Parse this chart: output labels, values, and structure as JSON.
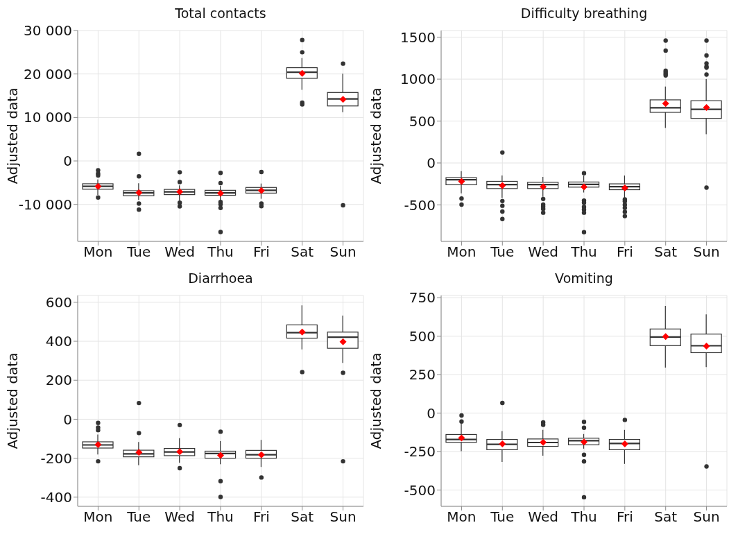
{
  "chart_data": [
    {
      "type": "box",
      "title": "Total contacts",
      "ylabel": "Adjusted data",
      "categories": [
        "Mon",
        "Tue",
        "Wed",
        "Thu",
        "Fri",
        "Sat",
        "Sun"
      ],
      "ylim": [
        -18500,
        30000
      ],
      "yticks": [
        {
          "value": -10000,
          "label": "-10 000"
        },
        0,
        {
          "value": 10000,
          "label": "10 000"
        },
        {
          "value": 20000,
          "label": "20 000"
        },
        {
          "value": 30000,
          "label": "30 000"
        }
      ],
      "grid": true,
      "boxes": [
        {
          "low": -7800,
          "q1": -6500,
          "median": -5850,
          "q3": -5250,
          "high": -4250,
          "mean": -5850,
          "outliers": [
            -2150,
            -2900,
            -3350,
            -8400
          ]
        },
        {
          "low": -8950,
          "q1": -8000,
          "median": -7350,
          "q3": -6850,
          "high": -5150,
          "mean": -7300,
          "outliers": [
            1650,
            -3550,
            -9800,
            -11200
          ]
        },
        {
          "low": -9100,
          "q1": -7750,
          "median": -7100,
          "q3": -6550,
          "high": -5600,
          "mean": -7100,
          "outliers": [
            -2600,
            -4850,
            -9600,
            -10450
          ]
        },
        {
          "low": -9200,
          "q1": -7900,
          "median": -7350,
          "q3": -6750,
          "high": -5750,
          "mean": -7450,
          "outliers": [
            -2750,
            -5100,
            -9450,
            -9950,
            -10800,
            -16350
          ]
        },
        {
          "low": -8700,
          "q1": -7400,
          "median": -6750,
          "q3": -6100,
          "high": -5200,
          "mean": -6800,
          "outliers": [
            -2550,
            -9800,
            -10400
          ]
        },
        {
          "low": 16350,
          "q1": 19000,
          "median": 20400,
          "q3": 21450,
          "high": 23650,
          "mean": 20150,
          "outliers": [
            27800,
            25000,
            13400,
            13000
          ]
        },
        {
          "low": 11200,
          "q1": 12650,
          "median": 14250,
          "q3": 15750,
          "high": 20050,
          "mean": 14150,
          "outliers": [
            22400,
            -10200
          ]
        }
      ]
    },
    {
      "type": "box",
      "title": "Difficulty breathing",
      "ylabel": "Adjusted data",
      "categories": [
        "Mon",
        "Tue",
        "Wed",
        "Thu",
        "Fri",
        "Sat",
        "Sun"
      ],
      "ylim": [
        -935,
        1580
      ],
      "yticks": [
        -500,
        0,
        500,
        1000,
        1500
      ],
      "grid": true,
      "boxes": [
        {
          "low": -363,
          "q1": -260,
          "median": -200,
          "q3": -175,
          "high": -97,
          "mean": -220,
          "outliers": [
            -424,
            -496
          ]
        },
        {
          "low": -418,
          "q1": -305,
          "median": -258,
          "q3": -219,
          "high": -150,
          "mean": -269,
          "outliers": [
            125,
            -454,
            -510,
            -579,
            -668
          ]
        },
        {
          "low": -404,
          "q1": -305,
          "median": -258,
          "q3": -230,
          "high": -166,
          "mean": -283,
          "outliers": [
            -429,
            -496,
            -521,
            -548,
            -593
          ]
        },
        {
          "low": -352,
          "q1": -288,
          "median": -255,
          "q3": -227,
          "high": -152,
          "mean": -285,
          "outliers": [
            -122,
            -449,
            -474,
            -524,
            -557,
            -593,
            -825
          ]
        },
        {
          "low": -418,
          "q1": -319,
          "median": -283,
          "q3": -249,
          "high": -150,
          "mean": -299,
          "outliers": [
            -435,
            -457,
            -499,
            -535,
            -584,
            -634
          ]
        },
        {
          "low": 418,
          "q1": 604,
          "median": 659,
          "q3": 753,
          "high": 911,
          "mean": 709,
          "outliers": [
            1460,
            1341,
            1100,
            1080,
            1060,
            1044
          ]
        },
        {
          "low": 343,
          "q1": 532,
          "median": 640,
          "q3": 742,
          "high": 1000,
          "mean": 662,
          "outliers": [
            1460,
            1282,
            1188,
            1150,
            1138,
            1055,
            -294
          ]
        }
      ]
    },
    {
      "type": "box",
      "title": "Diarrhoea",
      "ylabel": "Adjusted data",
      "categories": [
        "Mon",
        "Tue",
        "Wed",
        "Thu",
        "Fri",
        "Sat",
        "Sun"
      ],
      "ylim": [
        -447,
        635
      ],
      "yticks": [
        -400,
        -200,
        0,
        200,
        400,
        600
      ],
      "grid": true,
      "boxes": [
        {
          "low": -181,
          "q1": -148,
          "median": -132,
          "q3": -116,
          "high": -79,
          "mean": -130,
          "outliers": [
            -19,
            -43,
            -56,
            -216
          ]
        },
        {
          "low": -236,
          "q1": -193,
          "median": -178,
          "q3": -159,
          "high": -117,
          "mean": -170,
          "outliers": [
            83,
            -71
          ]
        },
        {
          "low": -224,
          "q1": -187,
          "median": -168,
          "q3": -150,
          "high": -97,
          "mean": -167,
          "outliers": [
            -30,
            -251
          ]
        },
        {
          "low": -231,
          "q1": -200,
          "median": -176,
          "q3": -164,
          "high": -112,
          "mean": -185,
          "outliers": [
            -64,
            -318,
            -399
          ]
        },
        {
          "low": -245,
          "q1": -200,
          "median": -182,
          "q3": -160,
          "high": -106,
          "mean": -183,
          "outliers": [
            -299
          ]
        },
        {
          "low": 358,
          "q1": 416,
          "median": 444,
          "q3": 484,
          "high": 584,
          "mean": 447,
          "outliers": [
            242
          ]
        },
        {
          "low": 289,
          "q1": 364,
          "median": 421,
          "q3": 447,
          "high": 532,
          "mean": 397,
          "outliers": [
            238,
            -216
          ]
        }
      ]
    },
    {
      "type": "box",
      "title": "Vomiting",
      "ylabel": "Adjusted data",
      "categories": [
        "Mon",
        "Tue",
        "Wed",
        "Thu",
        "Fri",
        "Sat",
        "Sun"
      ],
      "ylim": [
        -606,
        765
      ],
      "yticks": [
        -500,
        -250,
        0,
        250,
        500,
        750
      ],
      "grid": true,
      "boxes": [
        {
          "low": -248,
          "q1": -190,
          "median": -171,
          "q3": -139,
          "high": -69,
          "mean": -162,
          "outliers": [
            -15,
            -55
          ]
        },
        {
          "low": -317,
          "q1": -238,
          "median": -203,
          "q3": -171,
          "high": -117,
          "mean": -200,
          "outliers": [
            66
          ]
        },
        {
          "low": -277,
          "q1": -216,
          "median": -191,
          "q3": -168,
          "high": -109,
          "mean": -190,
          "outliers": [
            -60,
            -76
          ]
        },
        {
          "low": -231,
          "q1": -206,
          "median": -179,
          "q3": -163,
          "high": -136,
          "mean": -188,
          "outliers": [
            -57,
            -95,
            -271,
            -314,
            -547
          ]
        },
        {
          "low": -330,
          "q1": -238,
          "median": -197,
          "q3": -171,
          "high": -109,
          "mean": -200,
          "outliers": [
            -44
          ]
        },
        {
          "low": 296,
          "q1": 439,
          "median": 495,
          "q3": 547,
          "high": 697,
          "mean": 498
        },
        {
          "low": 299,
          "q1": 393,
          "median": 438,
          "q3": 514,
          "high": 642,
          "mean": 436,
          "outliers": [
            -347
          ]
        }
      ]
    }
  ]
}
